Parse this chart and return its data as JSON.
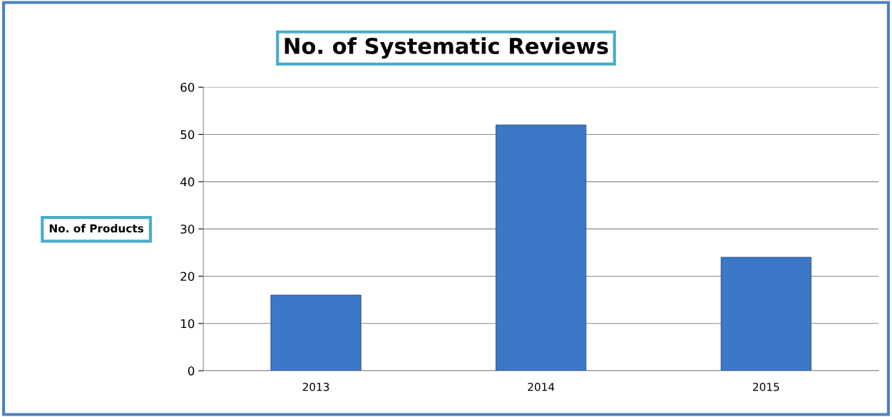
{
  "chart_data": {
    "type": "bar",
    "title": "No. of Systematic Reviews",
    "ylabel": "No. of Products",
    "categories": [
      "2013",
      "2014",
      "2015"
    ],
    "values": [
      16,
      52,
      24
    ],
    "color": "#3c78c8",
    "ylim": [
      0,
      60
    ],
    "yticks": [
      0,
      10,
      20,
      30,
      40,
      50,
      60
    ],
    "grid": "y"
  }
}
